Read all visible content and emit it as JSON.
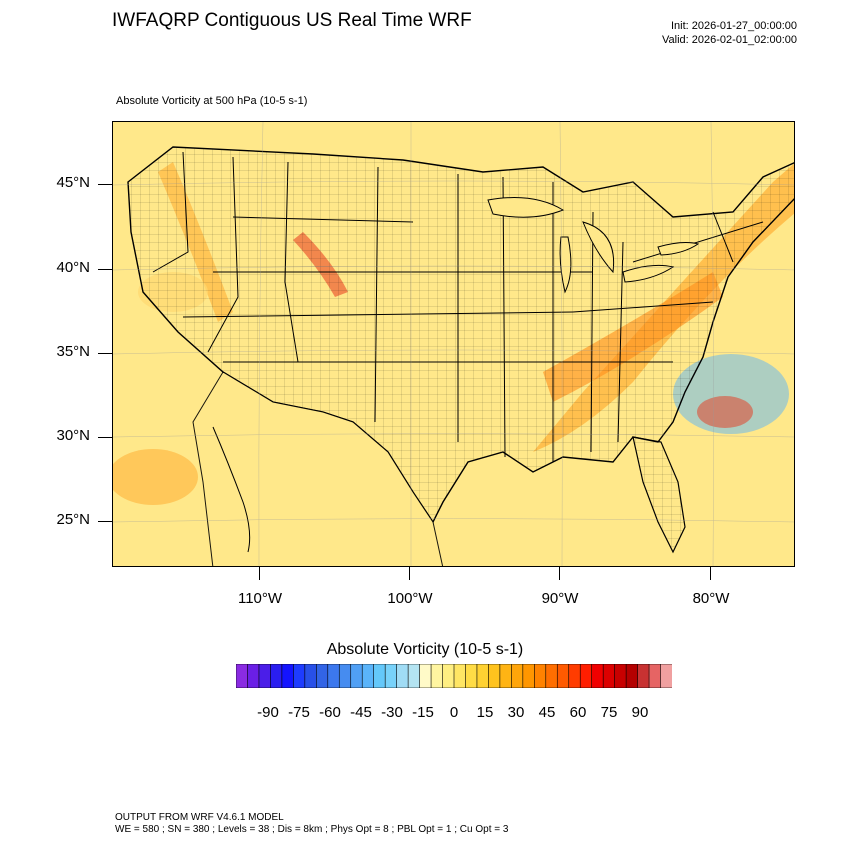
{
  "header": {
    "title": "IWFAQRP Contiguous US Real Time WRF",
    "init": "Init: 2026-01-27_00:00:00",
    "valid": "Valid: 2026-02-01_02:00:00",
    "subtitle": "Absolute Vorticity at 500 hPa   (10-5 s-1)"
  },
  "map": {
    "lat_labels": [
      {
        "text": "45°N",
        "lat": 45
      },
      {
        "text": "40°N",
        "lat": 40
      },
      {
        "text": "35°N",
        "lat": 35
      },
      {
        "text": "30°N",
        "lat": 30
      },
      {
        "text": "25°N",
        "lat": 25
      }
    ],
    "lon_labels": [
      {
        "text": "110°W",
        "lon": -110
      },
      {
        "text": "100°W",
        "lon": -100
      },
      {
        "text": "90°W",
        "lon": -90
      },
      {
        "text": "80°W",
        "lon": -80
      }
    ],
    "background_color": "#ffe88a",
    "boundary_color": "#000000",
    "max_vorticity_color": "#e8361b",
    "min_vorticity_color": "#6ab8ee"
  },
  "colorbar": {
    "title": "Absolute Vorticity  (10-5 s-1)",
    "labels": [
      "-90",
      "-75",
      "-60",
      "-45",
      "-30",
      "-15",
      "0",
      "15",
      "30",
      "45",
      "60",
      "75",
      "90"
    ],
    "colors": [
      "#8a2be2",
      "#6a1fe6",
      "#4b1ee8",
      "#2a1ef0",
      "#1414ff",
      "#1e3cff",
      "#2850e8",
      "#3264e6",
      "#3c78ee",
      "#468cf0",
      "#50a0f5",
      "#5ab4fa",
      "#64c8fa",
      "#78d2fa",
      "#a0dcf5",
      "#b4e4f2",
      "#fffac8",
      "#fff5a0",
      "#ffef82",
      "#ffe664",
      "#ffdc46",
      "#ffd232",
      "#ffc31e",
      "#ffb414",
      "#ffa50a",
      "#ff9600",
      "#ff8200",
      "#ff6e00",
      "#ff5a00",
      "#ff3c00",
      "#ff1e00",
      "#f00000",
      "#dc0000",
      "#c80000",
      "#b40000",
      "#c83232",
      "#e66464",
      "#f0a0a0"
    ]
  },
  "footer": {
    "line1": "OUTPUT FROM WRF V4.6.1 MODEL",
    "line2": "WE = 580 ; SN = 380 ; Levels = 38 ; Dis = 8km ; Phys Opt = 8 ; PBL Opt = 1 ; Cu Opt = 3"
  }
}
